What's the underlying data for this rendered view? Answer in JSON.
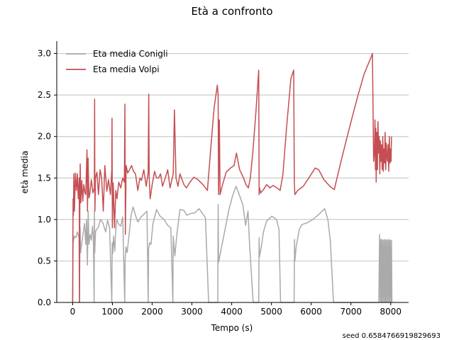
{
  "chart_data": {
    "type": "line",
    "title": "Età a confronto",
    "xlabel": "Tempo (s)",
    "ylabel": "età media",
    "xlim": [
      -400,
      8450
    ],
    "ylim": [
      0,
      3.15
    ],
    "xticks": [
      0,
      1000,
      2000,
      3000,
      4000,
      5000,
      6000,
      7000,
      8000
    ],
    "yticks": [
      0.0,
      0.5,
      1.0,
      1.5,
      2.0,
      2.5,
      3.0
    ],
    "xtick_labels": [
      "0",
      "1000",
      "2000",
      "3000",
      "4000",
      "5000",
      "6000",
      "7000",
      "8000"
    ],
    "ytick_labels": [
      "0.0",
      "0.5",
      "1.0",
      "1.5",
      "2.0",
      "2.5",
      "3.0"
    ],
    "grid": "horizontal",
    "legend_position": "top-left",
    "series": [
      {
        "name": "Eta media Conigli",
        "color": "#aaaaaa",
        "points": [
          [
            0,
            0.0
          ],
          [
            10,
            0.72
          ],
          [
            40,
            0.8
          ],
          [
            80,
            0.78
          ],
          [
            120,
            0.85
          ],
          [
            160,
            0.78
          ],
          [
            170,
            0.0
          ],
          [
            185,
            0.9
          ],
          [
            200,
            0.6
          ],
          [
            230,
            0.72
          ],
          [
            260,
            0.82
          ],
          [
            300,
            0.95
          ],
          [
            330,
            0.7
          ],
          [
            350,
            1.0
          ],
          [
            370,
            0.45
          ],
          [
            390,
            1.1
          ],
          [
            410,
            0.7
          ],
          [
            440,
            0.82
          ],
          [
            470,
            0.75
          ],
          [
            500,
            0.92
          ],
          [
            520,
            0.78
          ],
          [
            540,
            0.0
          ],
          [
            548,
            1.1
          ],
          [
            556,
            0.6
          ],
          [
            575,
            0.85
          ],
          [
            600,
            0.88
          ],
          [
            640,
            0.9
          ],
          [
            700,
            1.0
          ],
          [
            760,
            0.96
          ],
          [
            830,
            0.85
          ],
          [
            880,
            0.99
          ],
          [
            930,
            0.9
          ],
          [
            985,
            0.0
          ],
          [
            995,
            0.72
          ],
          [
            1010,
            0.59
          ],
          [
            1030,
            0.8
          ],
          [
            1060,
            0.62
          ],
          [
            1085,
            0.88
          ],
          [
            1110,
            1.0
          ],
          [
            1160,
            0.94
          ],
          [
            1210,
            0.92
          ],
          [
            1260,
            1.03
          ],
          [
            1310,
            0.0
          ],
          [
            1320,
            0.52
          ],
          [
            1340,
            0.67
          ],
          [
            1370,
            0.6
          ],
          [
            1420,
            0.82
          ],
          [
            1470,
            1.05
          ],
          [
            1520,
            1.15
          ],
          [
            1580,
            1.05
          ],
          [
            1640,
            0.97
          ],
          [
            1720,
            1.03
          ],
          [
            1870,
            1.1
          ],
          [
            1900,
            0.0
          ],
          [
            1910,
            0.65
          ],
          [
            1940,
            0.72
          ],
          [
            1970,
            0.7
          ],
          [
            2020,
            0.95
          ],
          [
            2110,
            1.12
          ],
          [
            2200,
            1.04
          ],
          [
            2300,
            1.0
          ],
          [
            2390,
            0.93
          ],
          [
            2470,
            0.9
          ],
          [
            2520,
            0.0
          ],
          [
            2530,
            0.8
          ],
          [
            2570,
            0.56
          ],
          [
            2620,
            0.82
          ],
          [
            2700,
            1.12
          ],
          [
            2800,
            1.11
          ],
          [
            2870,
            1.05
          ],
          [
            2950,
            1.07
          ],
          [
            3070,
            1.08
          ],
          [
            3180,
            1.13
          ],
          [
            3340,
            1.02
          ],
          [
            3420,
            0.0
          ],
          [
            3650,
            0.0
          ],
          [
            3660,
            1.18
          ],
          [
            3670,
            0.48
          ],
          [
            3710,
            0.58
          ],
          [
            3800,
            0.8
          ],
          [
            3930,
            1.12
          ],
          [
            4020,
            1.28
          ],
          [
            4110,
            1.4
          ],
          [
            4190,
            1.3
          ],
          [
            4280,
            1.18
          ],
          [
            4350,
            0.93
          ],
          [
            4410,
            1.1
          ],
          [
            4450,
            0.7
          ],
          [
            4540,
            0.0
          ],
          [
            4680,
            0.0
          ],
          [
            4690,
            0.78
          ],
          [
            4700,
            0.55
          ],
          [
            4750,
            0.68
          ],
          [
            4800,
            0.85
          ],
          [
            4880,
            0.98
          ],
          [
            5010,
            1.04
          ],
          [
            5130,
            1.0
          ],
          [
            5190,
            0.88
          ],
          [
            5230,
            0.0
          ],
          [
            5570,
            0.0
          ],
          [
            5580,
            0.76
          ],
          [
            5590,
            0.5
          ],
          [
            5620,
            0.66
          ],
          [
            5700,
            0.88
          ],
          [
            5770,
            0.94
          ],
          [
            5900,
            0.96
          ],
          [
            6040,
            1.0
          ],
          [
            6190,
            1.06
          ],
          [
            6340,
            1.13
          ],
          [
            6420,
            1.0
          ],
          [
            6480,
            0.75
          ],
          [
            6560,
            0.0
          ],
          [
            7700,
            0.0
          ],
          [
            7720,
            0.82
          ],
          [
            7735,
            0.0
          ],
          [
            7750,
            0.76
          ],
          [
            7765,
            0.0
          ],
          [
            7780,
            0.76
          ],
          [
            7795,
            0.0
          ],
          [
            7810,
            0.75
          ],
          [
            7825,
            0.0
          ],
          [
            7840,
            0.76
          ],
          [
            7855,
            0.0
          ],
          [
            7870,
            0.75
          ],
          [
            7885,
            0.0
          ],
          [
            7900,
            0.76
          ],
          [
            7915,
            0.0
          ],
          [
            7930,
            0.75
          ],
          [
            7945,
            0.0
          ],
          [
            7960,
            0.76
          ],
          [
            7975,
            0.0
          ],
          [
            7990,
            0.75
          ],
          [
            8005,
            0.0
          ],
          [
            8020,
            0.75
          ],
          [
            8030,
            0.0
          ]
        ]
      },
      {
        "name": "Eta media Volpi",
        "color": "#c44e52",
        "points": [
          [
            0,
            0.0
          ],
          [
            10,
            1.25
          ],
          [
            20,
            1.05
          ],
          [
            30,
            1.55
          ],
          [
            45,
            1.1
          ],
          [
            70,
            1.56
          ],
          [
            95,
            1.35
          ],
          [
            120,
            1.55
          ],
          [
            140,
            1.25
          ],
          [
            165,
            1.5
          ],
          [
            172,
            0.0
          ],
          [
            182,
            1.33
          ],
          [
            190,
            1.67
          ],
          [
            205,
            1.2
          ],
          [
            230,
            1.47
          ],
          [
            255,
            1.22
          ],
          [
            280,
            1.42
          ],
          [
            310,
            1.32
          ],
          [
            330,
            1.3
          ],
          [
            360,
            1.84
          ],
          [
            372,
            1.1
          ],
          [
            388,
            1.74
          ],
          [
            408,
            1.26
          ],
          [
            430,
            1.3
          ],
          [
            470,
            1.48
          ],
          [
            510,
            1.32
          ],
          [
            545,
            1.38
          ],
          [
            552,
            2.45
          ],
          [
            560,
            1.1
          ],
          [
            575,
            1.5
          ],
          [
            610,
            1.57
          ],
          [
            650,
            1.3
          ],
          [
            690,
            1.6
          ],
          [
            730,
            1.5
          ],
          [
            770,
            1.1
          ],
          [
            810,
            1.65
          ],
          [
            860,
            1.34
          ],
          [
            900,
            1.48
          ],
          [
            950,
            1.3
          ],
          [
            985,
            1.6
          ],
          [
            990,
            2.22
          ],
          [
            998,
            0.9
          ],
          [
            1020,
            1.44
          ],
          [
            1055,
            0.9
          ],
          [
            1085,
            1.35
          ],
          [
            1115,
            1.25
          ],
          [
            1160,
            1.45
          ],
          [
            1210,
            1.38
          ],
          [
            1260,
            1.5
          ],
          [
            1300,
            1.45
          ],
          [
            1315,
            2.39
          ],
          [
            1325,
            0.82
          ],
          [
            1345,
            1.65
          ],
          [
            1385,
            1.56
          ],
          [
            1430,
            1.6
          ],
          [
            1480,
            1.65
          ],
          [
            1530,
            1.58
          ],
          [
            1580,
            1.55
          ],
          [
            1640,
            1.35
          ],
          [
            1690,
            1.5
          ],
          [
            1730,
            1.47
          ],
          [
            1790,
            1.6
          ],
          [
            1850,
            1.4
          ],
          [
            1900,
            1.57
          ],
          [
            1915,
            2.51
          ],
          [
            1925,
            1.5
          ],
          [
            1950,
            1.25
          ],
          [
            2000,
            1.42
          ],
          [
            2060,
            1.58
          ],
          [
            2110,
            1.5
          ],
          [
            2160,
            1.5
          ],
          [
            2210,
            1.55
          ],
          [
            2260,
            1.4
          ],
          [
            2330,
            1.5
          ],
          [
            2390,
            1.6
          ],
          [
            2450,
            1.38
          ],
          [
            2530,
            1.55
          ],
          [
            2560,
            2.32
          ],
          [
            2600,
            1.5
          ],
          [
            2650,
            1.4
          ],
          [
            2700,
            1.55
          ],
          [
            2800,
            1.42
          ],
          [
            2860,
            1.38
          ],
          [
            2950,
            1.45
          ],
          [
            3050,
            1.51
          ],
          [
            3150,
            1.48
          ],
          [
            3280,
            1.42
          ],
          [
            3390,
            1.35
          ],
          [
            3480,
            1.9
          ],
          [
            3560,
            2.35
          ],
          [
            3640,
            2.62
          ],
          [
            3660,
            2.5
          ],
          [
            3670,
            1.3
          ],
          [
            3690,
            2.2
          ],
          [
            3710,
            1.3
          ],
          [
            3760,
            1.4
          ],
          [
            3860,
            1.57
          ],
          [
            3970,
            1.62
          ],
          [
            4060,
            1.65
          ],
          [
            4120,
            1.8
          ],
          [
            4200,
            1.6
          ],
          [
            4300,
            1.5
          ],
          [
            4360,
            1.42
          ],
          [
            4420,
            1.38
          ],
          [
            4470,
            1.5
          ],
          [
            4530,
            1.8
          ],
          [
            4610,
            2.3
          ],
          [
            4680,
            2.8
          ],
          [
            4690,
            1.3
          ],
          [
            4700,
            1.38
          ],
          [
            4730,
            1.32
          ],
          [
            4800,
            1.36
          ],
          [
            4880,
            1.42
          ],
          [
            4960,
            1.38
          ],
          [
            5040,
            1.41
          ],
          [
            5140,
            1.38
          ],
          [
            5220,
            1.35
          ],
          [
            5290,
            1.55
          ],
          [
            5380,
            2.1
          ],
          [
            5490,
            2.7
          ],
          [
            5560,
            2.8
          ],
          [
            5575,
            1.45
          ],
          [
            5590,
            1.3
          ],
          [
            5660,
            1.35
          ],
          [
            5800,
            1.4
          ],
          [
            5940,
            1.5
          ],
          [
            6100,
            1.62
          ],
          [
            6190,
            1.6
          ],
          [
            6320,
            1.48
          ],
          [
            6470,
            1.4
          ],
          [
            6580,
            1.36
          ],
          [
            6750,
            1.7
          ],
          [
            6880,
            1.95
          ],
          [
            7040,
            2.25
          ],
          [
            7180,
            2.5
          ],
          [
            7330,
            2.75
          ],
          [
            7500,
            2.95
          ],
          [
            7540,
            3.0
          ],
          [
            7570,
            1.7
          ],
          [
            7590,
            1.8
          ],
          [
            7605,
            2.2
          ],
          [
            7615,
            1.6
          ],
          [
            7625,
            2.1
          ],
          [
            7635,
            1.45
          ],
          [
            7650,
            2.05
          ],
          [
            7665,
            1.6
          ],
          [
            7680,
            2.18
          ],
          [
            7695,
            1.8
          ],
          [
            7710,
            2.0
          ],
          [
            7725,
            1.55
          ],
          [
            7740,
            1.95
          ],
          [
            7755,
            1.7
          ],
          [
            7770,
            1.9
          ],
          [
            7785,
            1.6
          ],
          [
            7800,
            2.0
          ],
          [
            7815,
            1.58
          ],
          [
            7830,
            1.85
          ],
          [
            7845,
            1.68
          ],
          [
            7860,
            2.05
          ],
          [
            7875,
            1.6
          ],
          [
            7890,
            1.92
          ],
          [
            7905,
            1.75
          ],
          [
            7920,
            1.7
          ],
          [
            7935,
            1.9
          ],
          [
            7950,
            1.58
          ],
          [
            7965,
            2.0
          ],
          [
            7980,
            1.68
          ],
          [
            7995,
            1.85
          ],
          [
            8010,
            1.7
          ],
          [
            8020,
            2.0
          ]
        ]
      }
    ]
  },
  "footer": {
    "seed_label": "seed 0.6584766919829693"
  }
}
